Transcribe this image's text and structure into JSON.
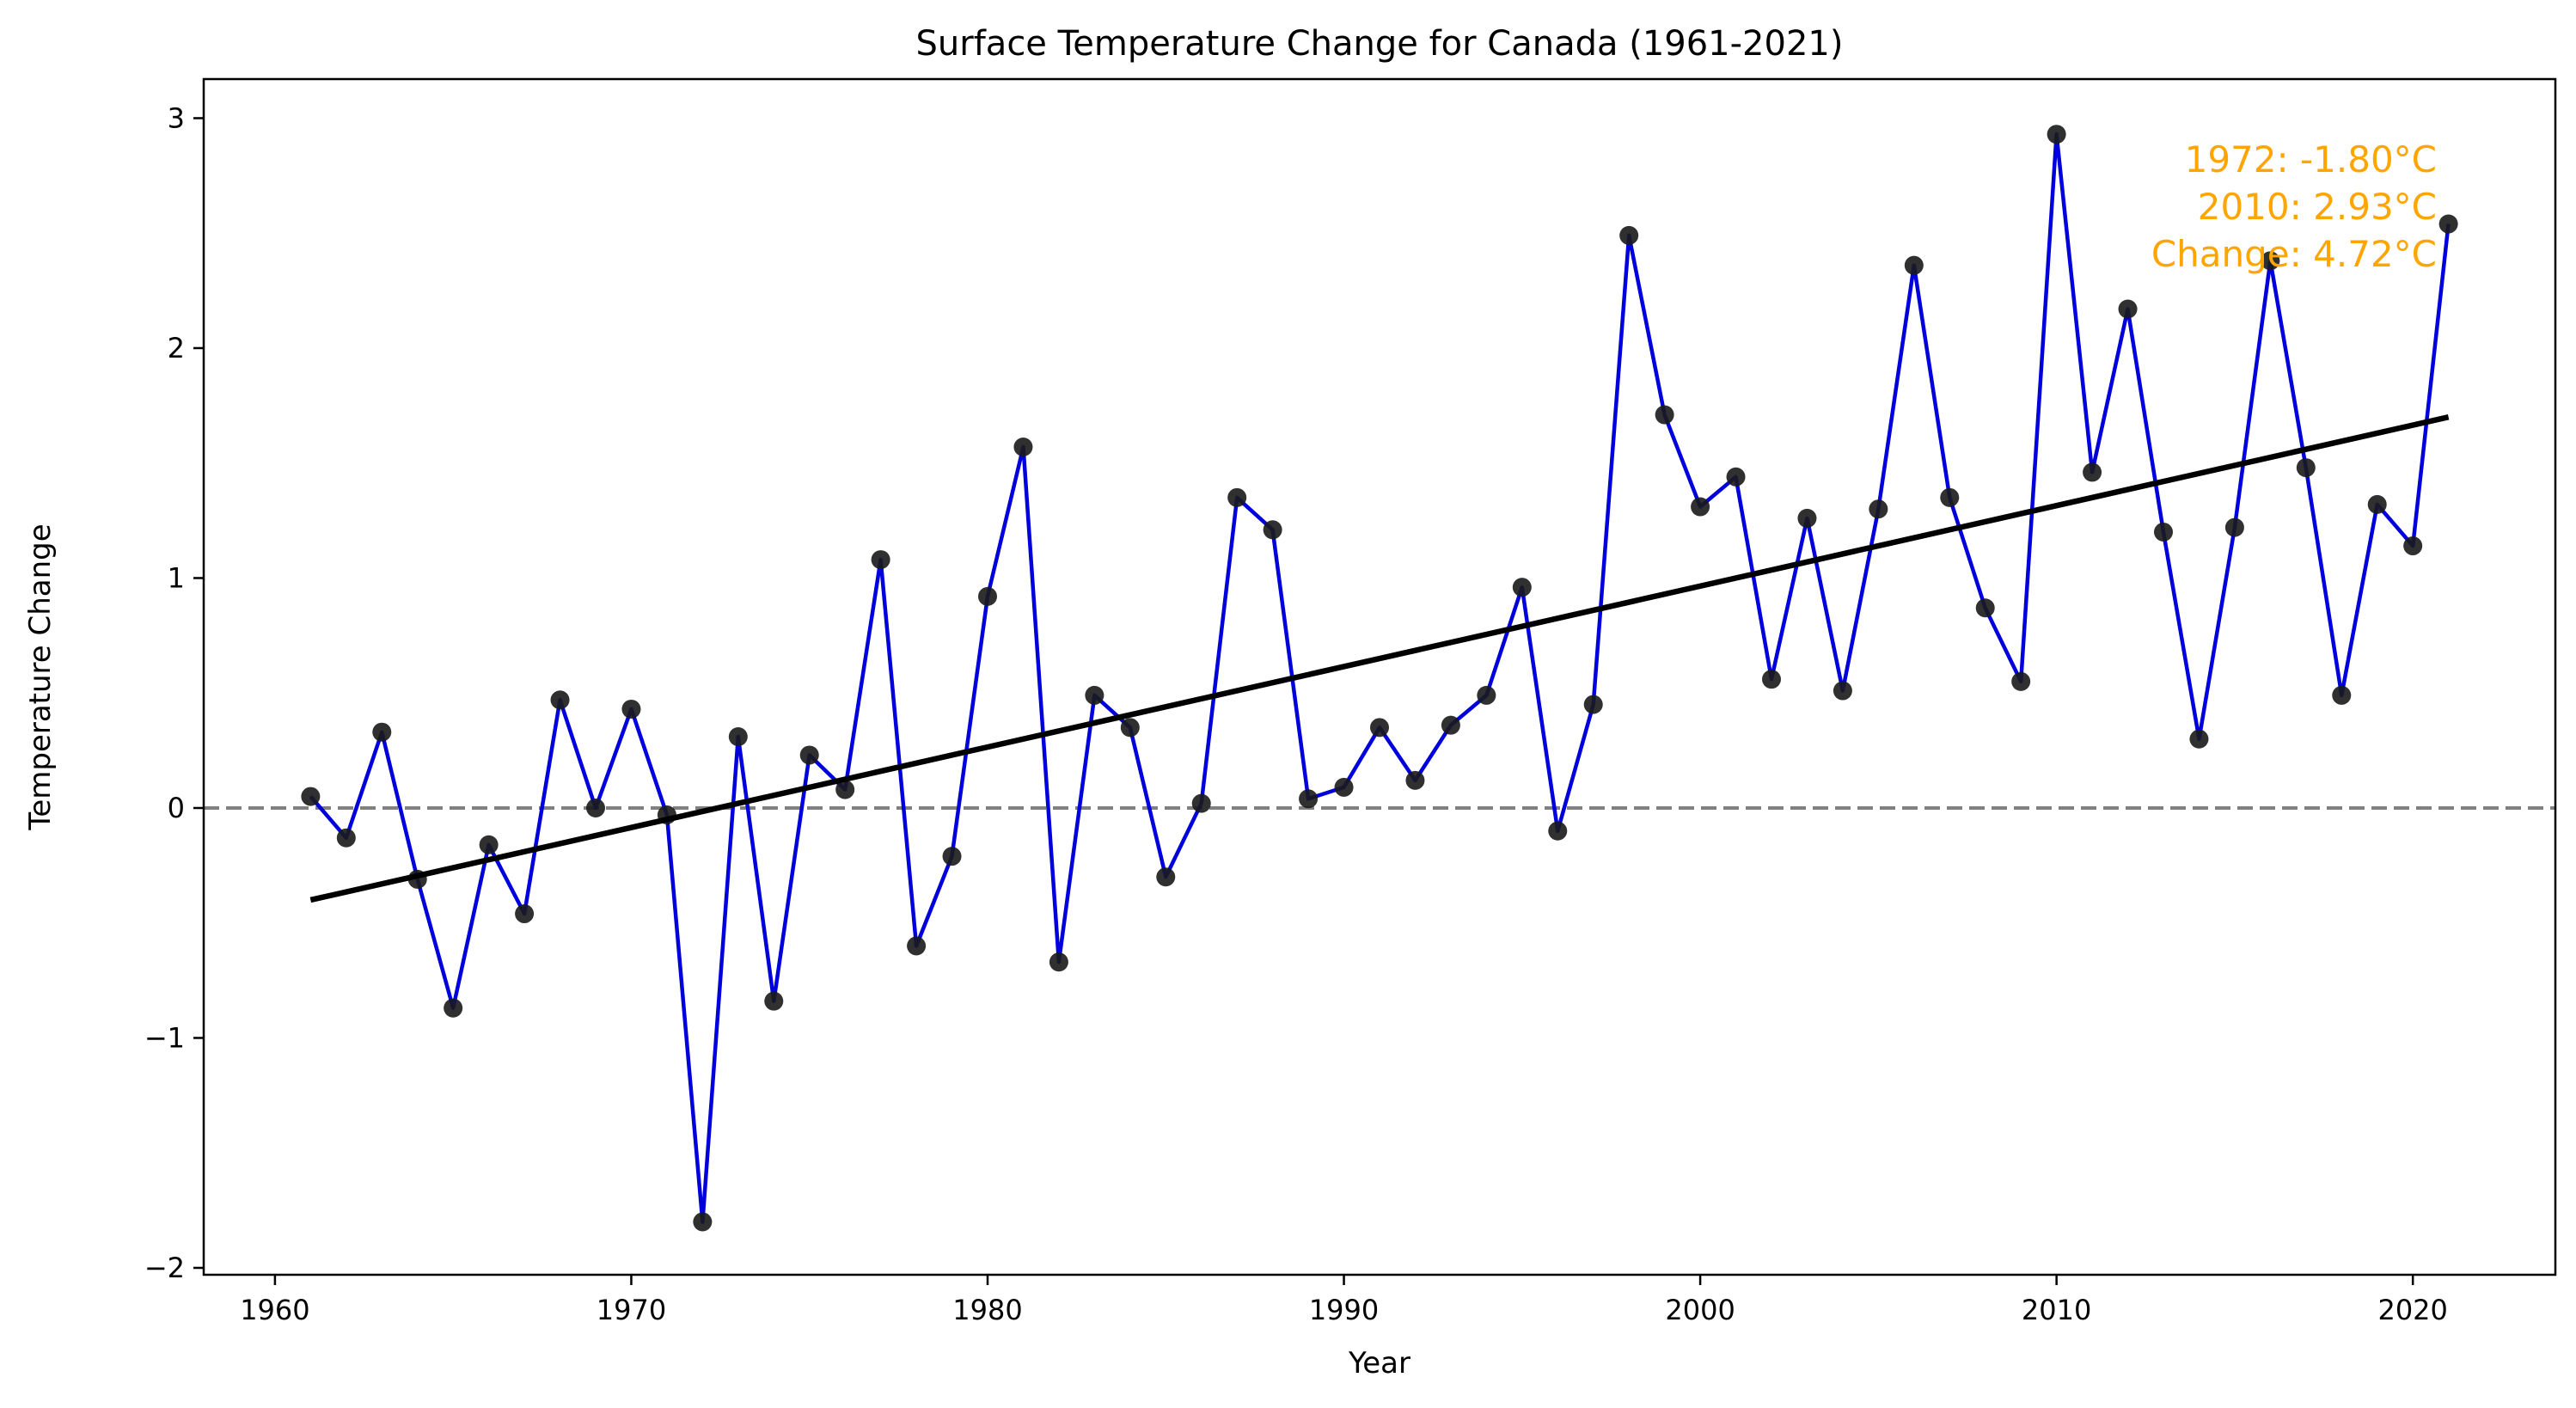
{
  "chart_data": {
    "type": "line",
    "title": "Surface Temperature Change for Canada (1961-2021)",
    "xlabel": "Year",
    "ylabel": "Temperature Change",
    "xlim": [
      1958,
      2024
    ],
    "ylim": [
      -2.03,
      3.17
    ],
    "x_ticks": [
      1960,
      1970,
      1980,
      1990,
      2000,
      2010,
      2020
    ],
    "y_ticks": [
      -2,
      -1,
      0,
      1,
      2,
      3
    ],
    "y_tick_labels": [
      "−2",
      "−1",
      "0",
      "1",
      "2",
      "3"
    ],
    "grid": false,
    "reference_line": {
      "y": 0,
      "style": "dashed",
      "color": "#808080"
    },
    "series": [
      {
        "color": "#0000dd",
        "marker_color": "#1a1a1a",
        "x": [
          1961,
          1962,
          1963,
          1964,
          1965,
          1966,
          1967,
          1968,
          1969,
          1970,
          1971,
          1972,
          1973,
          1974,
          1975,
          1976,
          1977,
          1978,
          1979,
          1980,
          1981,
          1982,
          1983,
          1984,
          1985,
          1986,
          1987,
          1988,
          1989,
          1990,
          1991,
          1992,
          1993,
          1994,
          1995,
          1996,
          1997,
          1998,
          1999,
          2000,
          2001,
          2002,
          2003,
          2004,
          2005,
          2006,
          2007,
          2008,
          2009,
          2010,
          2011,
          2012,
          2013,
          2014,
          2015,
          2016,
          2017,
          2018,
          2019,
          2020,
          2021
        ],
        "values": [
          0.05,
          -0.13,
          0.33,
          -0.31,
          -0.87,
          -0.16,
          -0.46,
          0.47,
          0.0,
          0.43,
          -0.03,
          -1.8,
          0.31,
          -0.84,
          0.23,
          0.08,
          1.08,
          -0.6,
          -0.21,
          0.92,
          1.57,
          -0.67,
          0.49,
          0.35,
          -0.3,
          0.02,
          1.35,
          1.21,
          0.04,
          0.09,
          0.35,
          0.12,
          0.36,
          0.49,
          0.96,
          -0.1,
          0.45,
          2.49,
          1.71,
          1.31,
          1.44,
          0.56,
          1.26,
          0.51,
          1.3,
          2.36,
          1.35,
          0.87,
          0.55,
          2.93,
          1.46,
          2.17,
          1.2,
          0.3,
          1.22,
          2.38,
          1.48,
          0.49,
          1.32,
          1.14,
          2.54
        ]
      }
    ],
    "trend_line": {
      "x": [
        1961,
        2021
      ],
      "y": [
        -0.4,
        1.7
      ],
      "color": "#000000"
    },
    "annotation": {
      "lines": [
        "1972: -1.80°C",
        "2010: 2.93°C",
        "Change: 4.72°C"
      ],
      "color": "#ffa500",
      "placement": "top-right"
    }
  }
}
